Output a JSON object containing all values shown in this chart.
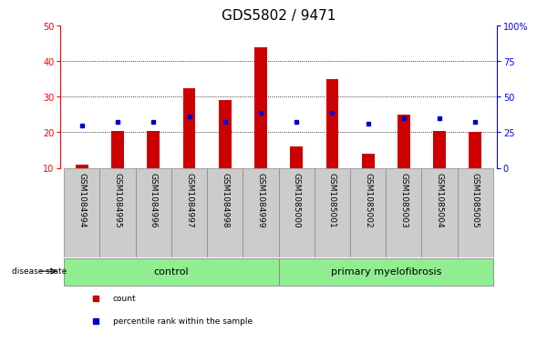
{
  "title": "GDS5802 / 9471",
  "samples": [
    "GSM1084994",
    "GSM1084995",
    "GSM1084996",
    "GSM1084997",
    "GSM1084998",
    "GSM1084999",
    "GSM1085000",
    "GSM1085001",
    "GSM1085002",
    "GSM1085003",
    "GSM1085004",
    "GSM1085005"
  ],
  "counts": [
    11,
    20.5,
    20.5,
    32.5,
    29,
    44,
    16,
    35,
    14,
    25,
    20.5,
    20
  ],
  "percentiles": [
    22,
    23,
    23,
    24.5,
    23,
    25.5,
    23,
    25.5,
    22.5,
    24,
    24,
    23
  ],
  "ylim_left": [
    10,
    50
  ],
  "ylim_right": [
    0,
    100
  ],
  "yticks_left": [
    10,
    20,
    30,
    40,
    50
  ],
  "yticks_right": [
    0,
    25,
    50,
    75,
    100
  ],
  "ytick_labels_right": [
    "0",
    "25",
    "50",
    "75",
    "100%"
  ],
  "bar_color": "#cc0000",
  "dot_color": "#0000cc",
  "group_labels": [
    "control",
    "primary myelofibrosis"
  ],
  "group_bg_color": "#90ee90",
  "disease_label": "disease state",
  "legend_items": [
    "count",
    "percentile rank within the sample"
  ],
  "title_fontsize": 11,
  "tick_fontsize": 7,
  "label_fontsize": 8,
  "bar_width": 0.35,
  "background_color": "#ffffff",
  "plot_bg_color": "#ffffff",
  "n_control": 6,
  "n_total": 12
}
